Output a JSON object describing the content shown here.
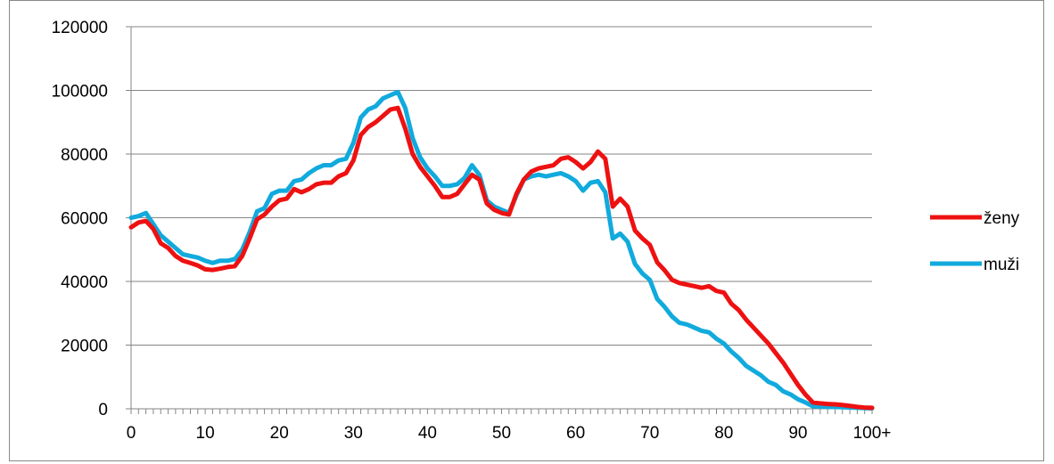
{
  "chart_data": {
    "type": "line",
    "title": "",
    "xlabel": "",
    "ylabel": "",
    "x": [
      0,
      1,
      2,
      3,
      4,
      5,
      6,
      7,
      8,
      9,
      10,
      11,
      12,
      13,
      14,
      15,
      16,
      17,
      18,
      19,
      20,
      21,
      22,
      23,
      24,
      25,
      26,
      27,
      28,
      29,
      30,
      31,
      32,
      33,
      34,
      35,
      36,
      37,
      38,
      39,
      40,
      41,
      42,
      43,
      44,
      45,
      46,
      47,
      48,
      49,
      50,
      51,
      52,
      53,
      54,
      55,
      56,
      57,
      58,
      59,
      60,
      61,
      62,
      63,
      64,
      65,
      66,
      67,
      68,
      69,
      70,
      71,
      72,
      73,
      74,
      75,
      76,
      77,
      78,
      79,
      80,
      81,
      82,
      83,
      84,
      85,
      86,
      87,
      88,
      89,
      90,
      91,
      92,
      93,
      94,
      95,
      96,
      97,
      98,
      99,
      100
    ],
    "x_tick_labels": [
      "0",
      "10",
      "20",
      "30",
      "40",
      "50",
      "60",
      "70",
      "80",
      "90",
      "100+"
    ],
    "x_tick_positions": [
      0,
      10,
      20,
      30,
      40,
      50,
      60,
      70,
      80,
      90,
      100
    ],
    "y_ticks": [
      0,
      20000,
      40000,
      60000,
      80000,
      100000,
      120000
    ],
    "ylim": [
      0,
      120000
    ],
    "grid": "horizontal",
    "legend_position": "right",
    "series": [
      {
        "name": "ženy",
        "color": "#ee1111",
        "values": [
          57000,
          58500,
          59000,
          56500,
          52000,
          50500,
          48000,
          46500,
          45800,
          45000,
          43800,
          43600,
          44000,
          44500,
          44800,
          48000,
          53500,
          59500,
          61000,
          63500,
          65500,
          66000,
          69000,
          68000,
          69000,
          70500,
          71000,
          71000,
          73000,
          74000,
          78000,
          86000,
          88500,
          90000,
          92000,
          94000,
          94500,
          88000,
          80000,
          76000,
          73000,
          70000,
          66500,
          66500,
          67500,
          70500,
          73500,
          72000,
          64500,
          62500,
          61500,
          61000,
          67500,
          72000,
          74500,
          75500,
          76000,
          76500,
          78500,
          79000,
          77500,
          75500,
          77500,
          80800,
          78500,
          63500,
          66000,
          63500,
          56000,
          53500,
          51500,
          46000,
          43500,
          40500,
          39500,
          39000,
          38500,
          38000,
          38500,
          37000,
          36500,
          33000,
          31000,
          28000,
          25500,
          23000,
          20500,
          17500,
          14500,
          11000,
          7500,
          4500,
          2000,
          1700,
          1500,
          1400,
          1200,
          900,
          600,
          400,
          300
        ]
      },
      {
        "name": "muži",
        "color": "#11aadd",
        "values": [
          60000,
          60500,
          61500,
          58000,
          54500,
          52500,
          50500,
          48500,
          48000,
          47500,
          46500,
          45800,
          46500,
          46500,
          47000,
          50000,
          55500,
          62000,
          63000,
          67500,
          68500,
          68500,
          71500,
          72000,
          74000,
          75500,
          76500,
          76500,
          78000,
          78500,
          83500,
          91500,
          94000,
          95000,
          97500,
          98500,
          99500,
          94500,
          85000,
          79000,
          75500,
          73000,
          70000,
          70000,
          70500,
          72500,
          76500,
          73500,
          65500,
          63500,
          62500,
          61500,
          67000,
          72000,
          73000,
          73500,
          73000,
          73500,
          74000,
          73000,
          71500,
          68500,
          71000,
          71500,
          68000,
          53500,
          55000,
          52500,
          45500,
          42500,
          40500,
          34500,
          32000,
          29000,
          27000,
          26500,
          25500,
          24500,
          24000,
          22000,
          20500,
          18000,
          16000,
          13500,
          12000,
          10500,
          8500,
          7500,
          5500,
          4500,
          3000,
          2000,
          800,
          700,
          600,
          550,
          500,
          400,
          300,
          200,
          150
        ]
      }
    ]
  }
}
